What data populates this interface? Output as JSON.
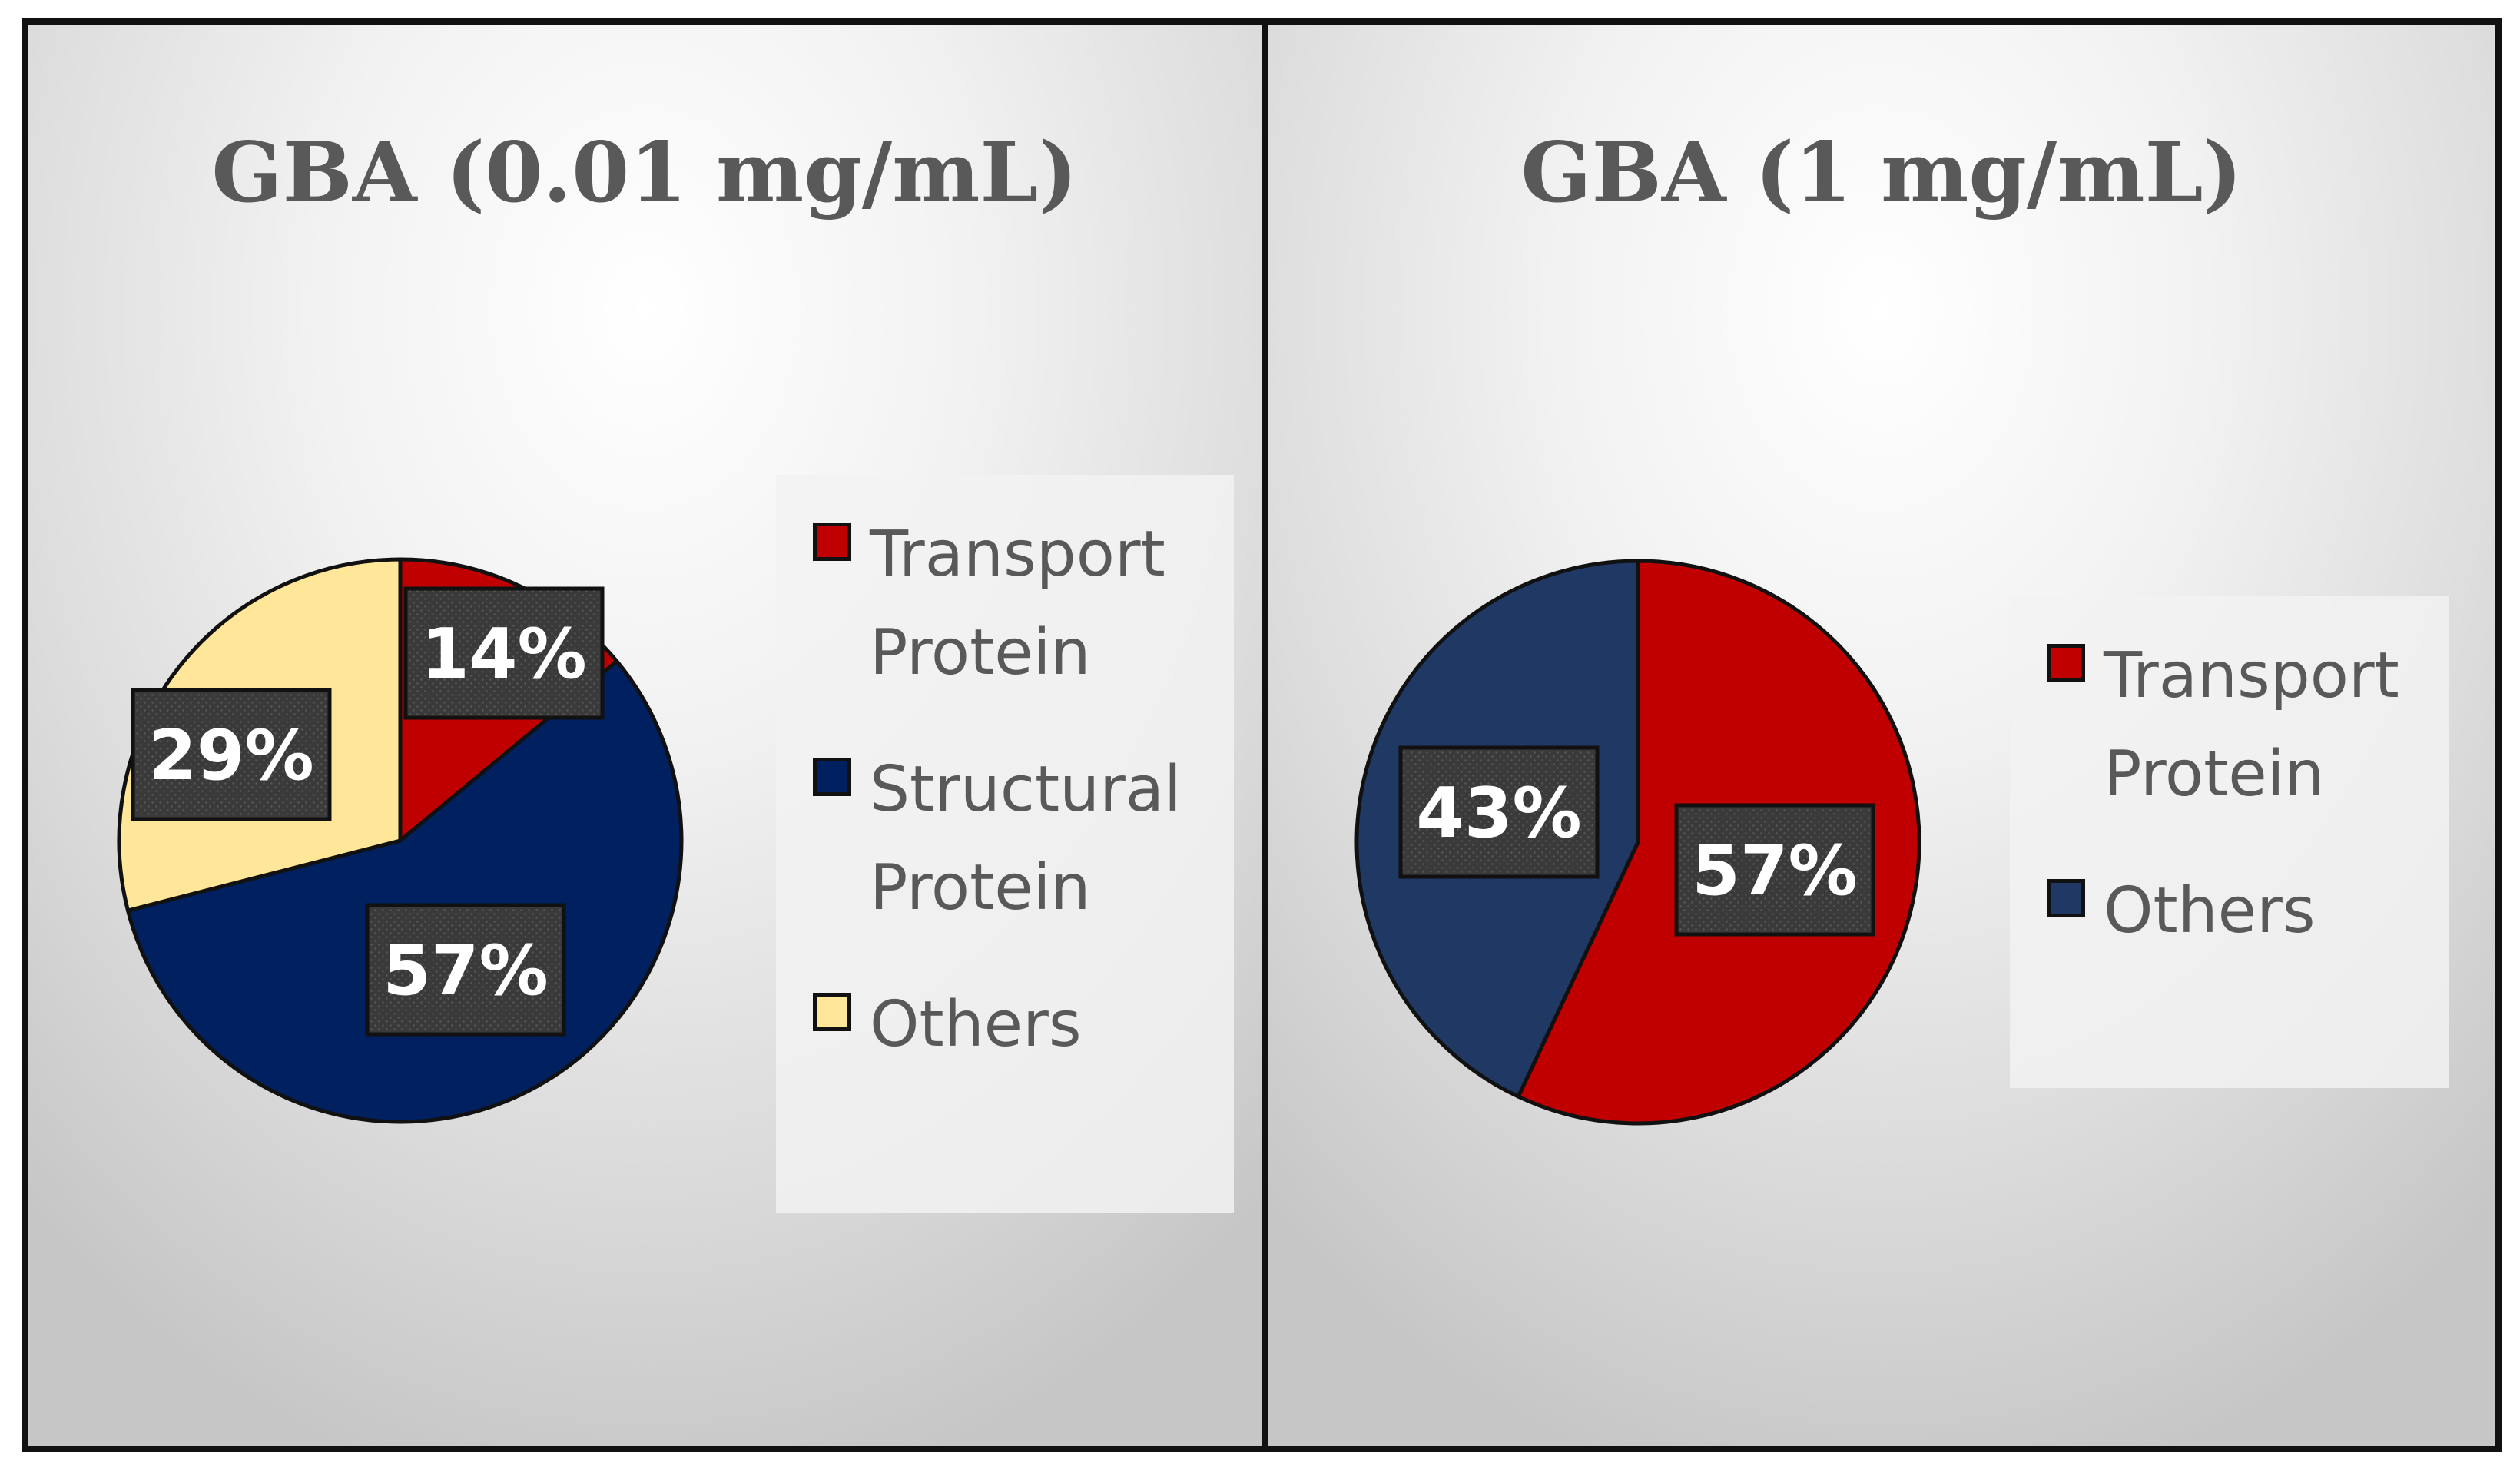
{
  "chart_data": [
    {
      "type": "pie",
      "title": "GBA (0.01 mg/mL)",
      "categories": [
        "Transport Protein",
        "Structural Protein",
        "Others"
      ],
      "values": [
        14,
        57,
        29
      ],
      "data_labels": [
        "14%",
        "57%",
        "29%"
      ],
      "colors": [
        "#c00000",
        "#002060",
        "#ffe699"
      ],
      "legend_position": "right"
    },
    {
      "type": "pie",
      "title": "GBA (1 mg/mL)",
      "categories": [
        "Transport Protein",
        "Others"
      ],
      "values": [
        57,
        43
      ],
      "data_labels": [
        "57%",
        "43%"
      ],
      "colors": [
        "#c00000",
        "#1f3864"
      ],
      "legend_position": "right"
    }
  ]
}
